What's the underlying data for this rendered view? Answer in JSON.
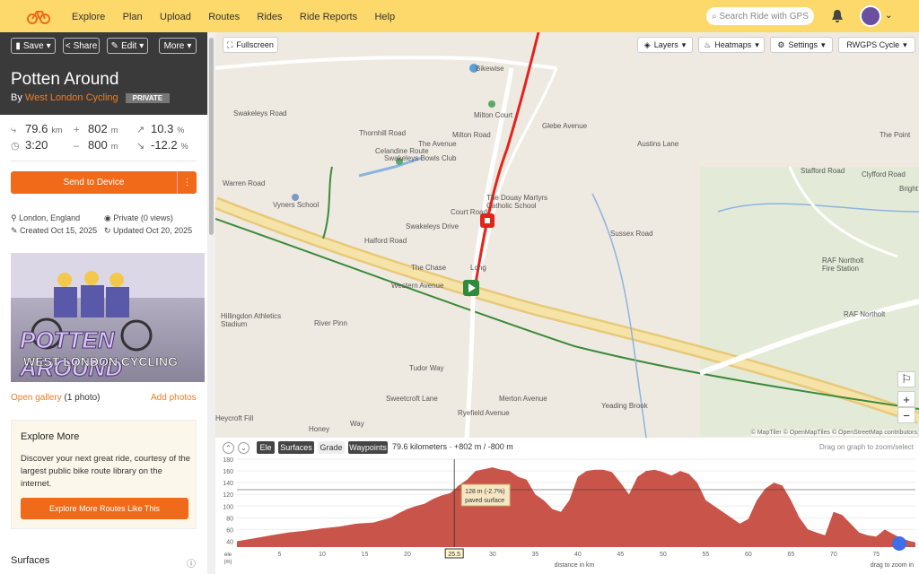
{
  "nav": {
    "items": [
      "Explore",
      "Plan",
      "Upload",
      "Routes",
      "Rides",
      "Ride Reports",
      "Help"
    ],
    "search_placeholder": "Search Ride with GPS"
  },
  "toolbar": {
    "save": "Save",
    "share": "Share",
    "edit": "Edit",
    "more": "More"
  },
  "route": {
    "title": "Potten Around",
    "by": "By",
    "club": "West London Cycling",
    "privacy_badge": "PRIVATE"
  },
  "stats": {
    "distance": "79.6",
    "distance_unit": "km",
    "time": "3:20",
    "ascent": "802",
    "ascent_unit": "m",
    "descent": "800",
    "descent_unit": "m",
    "max_grade": "10.3",
    "max_grade_unit": "%",
    "min_grade": "-12.2",
    "min_grade_unit": "%"
  },
  "send_label": "Send to Device",
  "meta": {
    "location": "London, England",
    "privacy": "Private (0 views)",
    "created": "Created Oct 15, 2025",
    "updated": "Updated Oct 20, 2025"
  },
  "photo": {
    "title": "POTTEN AROUND",
    "subtitle": "WEST LONDON CYCLING"
  },
  "gallery": {
    "open": "Open gallery",
    "count": "(1 photo)",
    "add": "Add photos"
  },
  "explore_box": {
    "title": "Explore More",
    "text": "Discover your next great ride, courtesy of the largest public bike route library on the internet.",
    "button": "Explore More Routes Like This"
  },
  "surfaces_heading": "Surfaces",
  "map": {
    "fullscreen": "Fullscreen",
    "layers": "Layers",
    "heatmaps": "Heatmaps",
    "settings": "Settings",
    "style": "RWGPS Cycle",
    "attribution": "© MapTiler © OpenMapTiles © OpenStreetMap contributors",
    "labels": [
      "Swakeleys Road",
      "Bikewise",
      "Milton Court",
      "Glebe Avenue",
      "Milton Road",
      "Thornhill Road",
      "The Avenue",
      "Celandine Route",
      "Swakeleys Bowls Club",
      "Austins Lane",
      "The Douay Martyrs Catholic School",
      "Vyners School",
      "Warren Road",
      "Court Road",
      "Swakeleys Drive",
      "Halford Road",
      "Sussex Road",
      "The Chase",
      "Western Avenue",
      "Hillingdon Athletics Stadium",
      "RAF Northolt Fire Station",
      "RAF Northolt",
      "Tudor Way",
      "Sweetcroft Lane",
      "Ryefield Avenue",
      "Merton Avenue",
      "Yeading Brook",
      "The Point",
      "Clyfford Road",
      "Stafford Road",
      "River Pinn",
      "Honey",
      "Heycroft Fill",
      "Way",
      "Bright",
      "Long"
    ]
  },
  "elevation": {
    "tabs": [
      "Ele",
      "Surfaces",
      "Grade",
      "Waypoints"
    ],
    "summary": "79.6 kilometers · +802 m / -800 m",
    "hint": "Drag on graph to zoom/select",
    "tooltip_line1": "128 m (-2.7%)",
    "tooltip_line2": "paved surface",
    "x_label": "distance in km",
    "y_label": "ele\n(m)",
    "zoom_hint": "drag to zoom in",
    "cursor_km": "25.5"
  },
  "chart_data": {
    "type": "area",
    "title": "",
    "xlabel": "distance in km",
    "ylabel": "ele (m)",
    "xlim": [
      0,
      79.6
    ],
    "ylim": [
      30,
      180
    ],
    "x": [
      0,
      2,
      4,
      6,
      8,
      10,
      12,
      14,
      16,
      18,
      19,
      20,
      21,
      22,
      23,
      24,
      25,
      25.5,
      26,
      27,
      28,
      29,
      30,
      31,
      32,
      33,
      34,
      35,
      36,
      37,
      38,
      39,
      40,
      41,
      42,
      43,
      44,
      45,
      46,
      47,
      48,
      49,
      50,
      51,
      52,
      53,
      54,
      55,
      56,
      57,
      58,
      59,
      60,
      61,
      62,
      63,
      64,
      65,
      66,
      67,
      68,
      69,
      70,
      71,
      72,
      73,
      74,
      75,
      76,
      77,
      78,
      79,
      79.6
    ],
    "y": [
      40,
      45,
      50,
      55,
      58,
      62,
      65,
      70,
      72,
      80,
      88,
      95,
      100,
      104,
      112,
      118,
      122,
      128,
      135,
      145,
      160,
      163,
      166,
      162,
      160,
      150,
      145,
      120,
      110,
      95,
      90,
      110,
      150,
      160,
      162,
      162,
      158,
      140,
      120,
      150,
      160,
      162,
      158,
      152,
      160,
      155,
      140,
      110,
      100,
      90,
      80,
      70,
      78,
      110,
      130,
      140,
      135,
      110,
      80,
      60,
      55,
      50,
      90,
      85,
      70,
      55,
      50,
      48,
      60,
      52,
      45,
      40,
      38
    ],
    "xticks": [
      5,
      10,
      15,
      20,
      25,
      30,
      35,
      40,
      45,
      50,
      55,
      60,
      65,
      70,
      75
    ],
    "yticks": [
      40,
      60,
      80,
      100,
      120,
      140,
      160,
      180
    ]
  }
}
